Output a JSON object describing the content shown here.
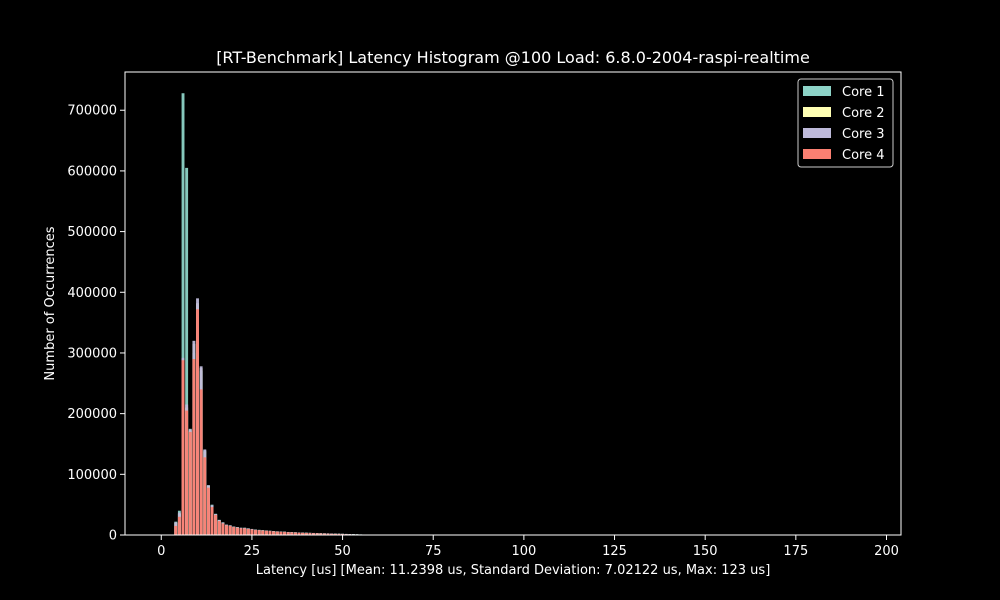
{
  "chart_data": {
    "type": "bar",
    "title": "[RT-Benchmark] Latency Histogram @100 Load: 6.8.0-2004-raspi-realtime",
    "xlabel": "Latency [us] [Mean: 11.2398 us, Standard Deviation: 7.02122 us, Max: 123 us]",
    "ylabel": "Number of Occurrences",
    "xlim": [
      -10,
      204
    ],
    "ylim": [
      0,
      763000
    ],
    "xticks": [
      0,
      25,
      50,
      75,
      100,
      125,
      150,
      175,
      200
    ],
    "yticks": [
      0,
      100000,
      200000,
      300000,
      400000,
      500000,
      600000,
      700000
    ],
    "grid": false,
    "legend_position": "top-right",
    "bar_width": 0.8,
    "x": [
      4,
      5,
      6,
      7,
      8,
      9,
      10,
      11,
      12,
      13,
      14,
      15,
      16,
      17,
      18,
      19,
      20,
      21,
      22,
      23,
      24,
      25,
      26,
      27,
      28,
      29,
      30,
      31,
      32,
      33,
      34,
      35,
      36,
      37,
      38,
      39,
      40,
      41,
      42,
      43,
      44,
      45,
      46,
      47,
      48,
      49,
      50,
      51,
      52,
      53,
      54,
      55
    ],
    "series": [
      {
        "name": "Core 1",
        "color": "#8dd3c7",
        "values": [
          22000,
          40000,
          728000,
          605000,
          175000,
          300000,
          380000,
          270000,
          140000,
          82000,
          50000,
          35000,
          25000,
          21000,
          17000,
          16000,
          14000,
          13000,
          12000,
          12000,
          11000,
          10000,
          9000,
          8500,
          8000,
          7500,
          7000,
          6500,
          6000,
          5800,
          5500,
          5000,
          4800,
          4500,
          4200,
          4000,
          3800,
          3600,
          3400,
          3200,
          3000,
          2800,
          2700,
          2500,
          2300,
          2200,
          2000,
          1800,
          1600,
          1400,
          1200,
          1000
        ]
      },
      {
        "name": "Core 2",
        "color": "#ffffb3",
        "values": [
          20000,
          35000,
          290000,
          210000,
          172000,
          315000,
          382000,
          275000,
          138000,
          81000,
          48000,
          34000,
          24000,
          20000,
          16500,
          15500,
          13500,
          12500,
          11500,
          11500,
          10500,
          9500,
          8700,
          8200,
          7700,
          7200,
          6700,
          6200,
          5800,
          5500,
          5200,
          4800,
          4600,
          4300,
          4000,
          3800,
          3600,
          3400,
          3200,
          3000,
          2800,
          2600,
          2500,
          2300,
          2100,
          2000,
          1800,
          1600,
          1400,
          1200,
          1000,
          800
        ]
      },
      {
        "name": "Core 3",
        "color": "#bebada",
        "values": [
          21000,
          37000,
          292000,
          215000,
          174000,
          320000,
          390000,
          278000,
          141000,
          82000,
          49000,
          34500,
          24500,
          20500,
          17000,
          15800,
          13800,
          12800,
          11800,
          11800,
          10800,
          9800,
          8800,
          8300,
          7800,
          7300,
          6800,
          6300,
          5900,
          5600,
          5300,
          4900,
          4700,
          4400,
          4100,
          3900,
          3700,
          3500,
          3300,
          3100,
          2900,
          2700,
          2600,
          2400,
          2200,
          2100,
          1900,
          1700,
          1500,
          1300,
          1100,
          900
        ]
      },
      {
        "name": "Core 4",
        "color": "#fb8072",
        "values": [
          15000,
          30000,
          288000,
          205000,
          170000,
          290000,
          372000,
          240000,
          128000,
          78000,
          46000,
          33000,
          23000,
          19000,
          16000,
          15000,
          13000,
          12000,
          11000,
          11000,
          10000,
          9000,
          8200,
          7800,
          7300,
          6800,
          6300,
          5800,
          5400,
          5100,
          4800,
          4400,
          4200,
          3900,
          3600,
          3400,
          3200,
          3000,
          2800,
          2600,
          2400,
          2200,
          2100,
          1900,
          1700,
          1600,
          1400,
          1200,
          1000,
          800,
          600,
          400
        ]
      }
    ]
  }
}
